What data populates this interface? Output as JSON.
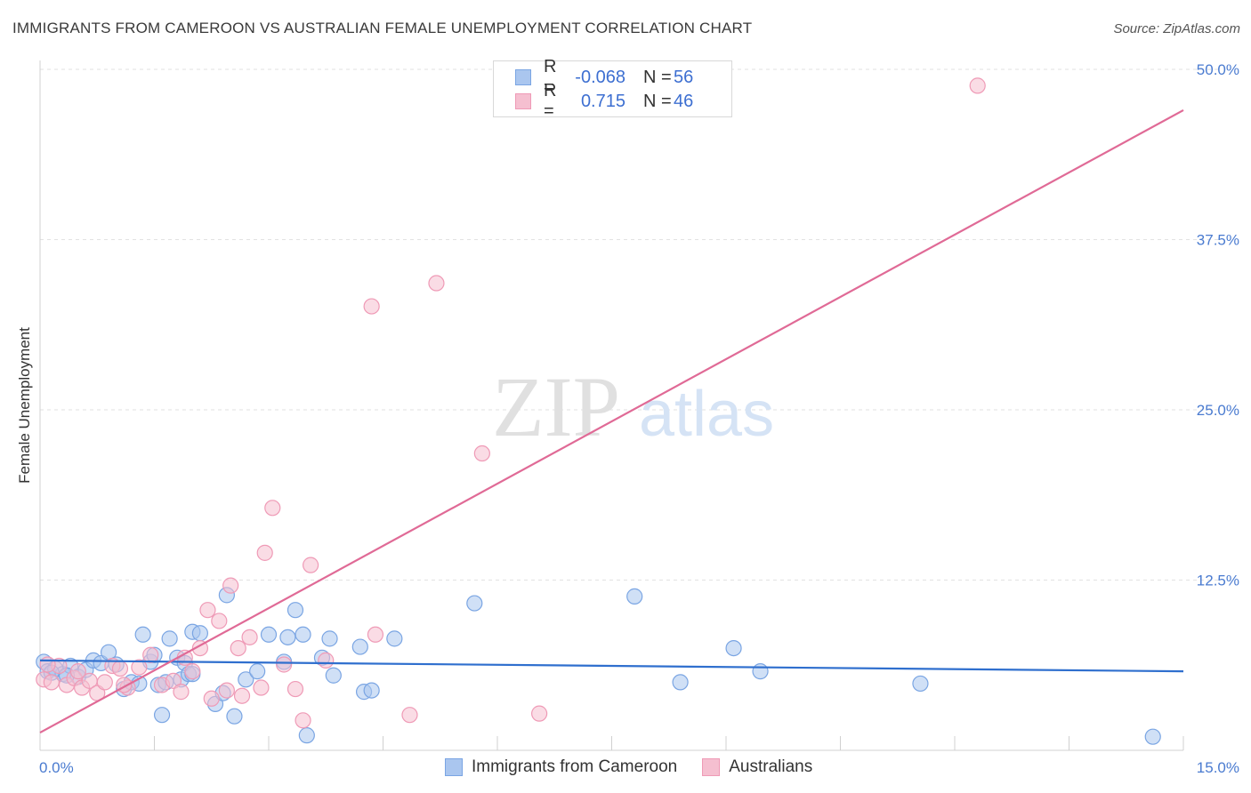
{
  "header": {
    "title": "IMMIGRANTS FROM CAMEROON VS AUSTRALIAN FEMALE UNEMPLOYMENT CORRELATION CHART",
    "source": "Source: ZipAtlas.com"
  },
  "legend": {
    "rows": [
      {
        "r_label": "R =",
        "r_value": "-0.068",
        "n_label": "N =",
        "n_value": "56"
      },
      {
        "r_label": "R =",
        "r_value": "0.715",
        "n_label": "N =",
        "n_value": "46"
      }
    ]
  },
  "bottom_legend": [
    "Immigrants from Cameroon",
    "Australians"
  ],
  "colors": {
    "blue_fill": "#aac6ef",
    "blue_stroke": "#7aa5e3",
    "blue_line": "#2f6fce",
    "pink_fill": "#f5bfd0",
    "pink_stroke": "#ef9ab6",
    "pink_line": "#e06a96",
    "tick_text": "#4a7bd0",
    "grid": "#e2e2e2"
  },
  "watermark": {
    "part1": "ZIP",
    "part2": "atlas"
  },
  "chart_data": {
    "type": "scatter",
    "title": "IMMIGRANTS FROM CAMEROON VS AUSTRALIAN FEMALE UNEMPLOYMENT CORRELATION CHART",
    "xlabel": "",
    "ylabel": "Female Unemployment",
    "xlim": [
      0,
      15
    ],
    "ylim": [
      0,
      50
    ],
    "x_tick_labels": [
      "0.0%",
      "15.0%"
    ],
    "y_ticks": [
      12.5,
      25.0,
      37.5,
      50.0
    ],
    "y_tick_labels": [
      "12.5%",
      "25.0%",
      "37.5%",
      "50.0%"
    ],
    "grid": true,
    "series": [
      {
        "name": "Immigrants from Cameroon",
        "color": "#7aa5e3",
        "trend": {
          "x": [
            0,
            15
          ],
          "y": [
            6.6,
            5.8
          ]
        },
        "points": [
          [
            0.05,
            6.5
          ],
          [
            0.1,
            5.8
          ],
          [
            0.2,
            6.0
          ],
          [
            0.3,
            5.6
          ],
          [
            0.4,
            6.2
          ],
          [
            0.5,
            5.4
          ],
          [
            0.6,
            5.9
          ],
          [
            0.7,
            6.6
          ],
          [
            0.8,
            6.4
          ],
          [
            0.9,
            7.2
          ],
          [
            1.0,
            6.3
          ],
          [
            1.1,
            4.5
          ],
          [
            1.2,
            5.0
          ],
          [
            1.35,
            8.5
          ],
          [
            1.45,
            6.5
          ],
          [
            1.5,
            7.0
          ],
          [
            1.55,
            4.8
          ],
          [
            1.6,
            2.6
          ],
          [
            1.65,
            5.0
          ],
          [
            1.7,
            8.2
          ],
          [
            1.8,
            6.8
          ],
          [
            1.85,
            5.2
          ],
          [
            1.9,
            6.4
          ],
          [
            1.95,
            5.6
          ],
          [
            2.0,
            8.7
          ],
          [
            2.1,
            8.6
          ],
          [
            2.3,
            3.4
          ],
          [
            2.4,
            4.2
          ],
          [
            2.45,
            11.4
          ],
          [
            2.55,
            2.5
          ],
          [
            2.7,
            5.2
          ],
          [
            2.85,
            5.8
          ],
          [
            3.0,
            8.5
          ],
          [
            3.2,
            6.5
          ],
          [
            3.25,
            8.3
          ],
          [
            3.35,
            10.3
          ],
          [
            3.45,
            8.5
          ],
          [
            3.5,
            1.1
          ],
          [
            3.7,
            6.8
          ],
          [
            3.8,
            8.2
          ],
          [
            3.85,
            5.5
          ],
          [
            4.2,
            7.6
          ],
          [
            4.25,
            4.3
          ],
          [
            4.35,
            4.4
          ],
          [
            4.65,
            8.2
          ],
          [
            5.7,
            10.8
          ],
          [
            7.8,
            11.3
          ],
          [
            8.4,
            5.0
          ],
          [
            9.1,
            7.5
          ],
          [
            9.45,
            5.8
          ],
          [
            11.55,
            4.9
          ],
          [
            14.6,
            1.0
          ],
          [
            0.15,
            5.7
          ],
          [
            0.35,
            5.5
          ],
          [
            1.3,
            4.9
          ],
          [
            2.0,
            5.6
          ]
        ]
      },
      {
        "name": "Australians",
        "color": "#ef9ab6",
        "trend": {
          "x": [
            0,
            15
          ],
          "y": [
            1.3,
            47.0
          ]
        },
        "points": [
          [
            0.05,
            5.2
          ],
          [
            0.15,
            5.0
          ],
          [
            0.25,
            6.2
          ],
          [
            0.35,
            4.8
          ],
          [
            0.45,
            5.3
          ],
          [
            0.55,
            4.6
          ],
          [
            0.65,
            5.1
          ],
          [
            0.75,
            4.2
          ],
          [
            0.85,
            5.0
          ],
          [
            0.95,
            6.2
          ],
          [
            1.05,
            6.0
          ],
          [
            1.15,
            4.6
          ],
          [
            1.3,
            6.1
          ],
          [
            1.45,
            7.0
          ],
          [
            1.6,
            4.8
          ],
          [
            1.75,
            5.1
          ],
          [
            1.85,
            4.3
          ],
          [
            1.9,
            6.8
          ],
          [
            2.0,
            5.8
          ],
          [
            2.1,
            7.5
          ],
          [
            2.2,
            10.3
          ],
          [
            2.25,
            3.8
          ],
          [
            2.35,
            9.5
          ],
          [
            2.45,
            4.4
          ],
          [
            2.5,
            12.1
          ],
          [
            2.6,
            7.5
          ],
          [
            2.65,
            4.0
          ],
          [
            2.75,
            8.3
          ],
          [
            2.9,
            4.6
          ],
          [
            2.95,
            14.5
          ],
          [
            3.05,
            17.8
          ],
          [
            3.2,
            6.3
          ],
          [
            3.35,
            4.5
          ],
          [
            3.45,
            2.2
          ],
          [
            3.55,
            13.6
          ],
          [
            3.75,
            6.6
          ],
          [
            4.35,
            32.6
          ],
          [
            4.4,
            8.5
          ],
          [
            4.85,
            2.6
          ],
          [
            5.2,
            34.3
          ],
          [
            5.8,
            21.8
          ],
          [
            6.55,
            2.7
          ],
          [
            12.3,
            48.8
          ],
          [
            0.1,
            6.3
          ],
          [
            0.5,
            5.8
          ],
          [
            1.1,
            4.8
          ]
        ]
      }
    ]
  }
}
